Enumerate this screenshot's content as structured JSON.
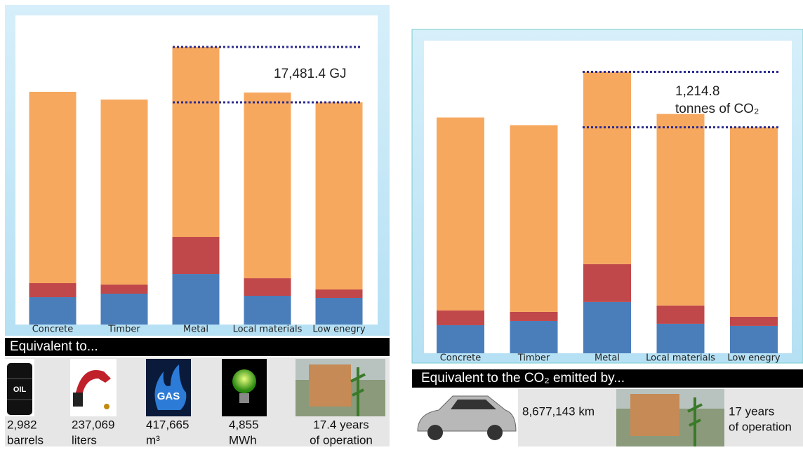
{
  "chart_data": [
    {
      "type": "stacked-bar",
      "categories": [
        "Concrete",
        "Timber",
        "Metal",
        "Local materials",
        "Low enegry"
      ],
      "series": [
        {
          "color": "#4a7ebb",
          "values": [
            8630,
            9740,
            15930,
            9070,
            8410
          ]
        },
        {
          "color": "#c0474a",
          "values": [
            4430,
            2880,
            11730,
            5530,
            2660
          ]
        },
        {
          "color": "#f7a85f",
          "values": [
            60420,
            58420,
            59970,
            58650,
            59090
          ]
        }
      ],
      "ylim": [
        0,
        97600
      ],
      "annotation": "17,481.4 GJ"
    },
    {
      "type": "stacked-bar",
      "categories": [
        "Concrete",
        "Timber",
        "Metal",
        "Local materials",
        "Low enegry"
      ],
      "series": [
        {
          "color": "#4a7ebb",
          "values": [
            615,
            707,
            1123,
            646,
            600
          ]
        },
        {
          "color": "#c0474a",
          "values": [
            323,
            200,
            830,
            400,
            200
          ]
        },
        {
          "color": "#f7a85f",
          "values": [
            4229,
            4091,
            4214,
            4198,
            4152
          ]
        }
      ],
      "ylim": [
        0,
        6850
      ],
      "annotation": [
        "1,214.8",
        "tonnes of CO₂"
      ]
    }
  ],
  "panels": [
    {
      "heading": "Equivalent to...",
      "items": [
        [
          "2,982",
          "barrels"
        ],
        [
          "237,069",
          "liters"
        ],
        [
          "417,665",
          "m³"
        ],
        [
          "4,855",
          "MWh"
        ],
        [
          "17.4 years",
          "of operation"
        ]
      ]
    },
    {
      "heading": "Equivalent to the CO₂ emitted by...",
      "items": [
        [
          "8,677,143 km"
        ],
        [
          "17 years",
          "of operation"
        ]
      ]
    }
  ]
}
